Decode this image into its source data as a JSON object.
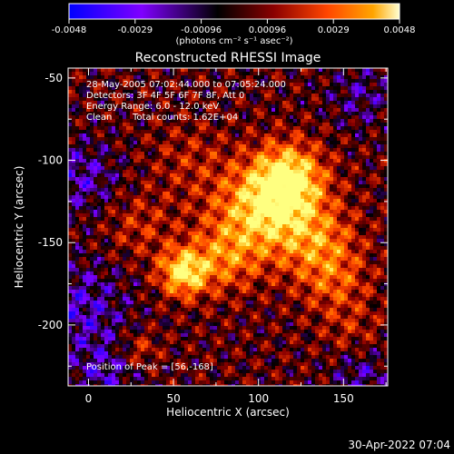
{
  "colorbar": {
    "ticks": [
      "-0.0048",
      "-0.0029",
      "-0.00096",
      "0.00096",
      "0.0029",
      "0.0048"
    ],
    "unit_label": "(photons cm⁻² s⁻¹ asec⁻²)"
  },
  "chart_data": {
    "type": "heatmap",
    "title": "Reconstructed RHESSI Image",
    "xlabel": "Heliocentric X (arcsec)",
    "ylabel": "Heliocentric Y (arcsec)",
    "xlim": [
      -12,
      176
    ],
    "ylim": [
      -237,
      -44
    ],
    "x_ticks": [
      0,
      50,
      100,
      150
    ],
    "y_ticks": [
      -50,
      -100,
      -150,
      -200
    ],
    "value_range": [
      -0.0048,
      0.0048
    ],
    "colormap": [
      "#0000ff",
      "#7f00ff",
      "#000000",
      "#8b0000",
      "#ff4500",
      "#ffa500",
      "#ffff80"
    ],
    "peak": [
      56,
      -168
    ],
    "annotations": {
      "time_range": "28-May-2005 07:02:44.000 to 07:05:24.000",
      "detectors": "Detectors: 3F 4F 5F 6F 7F 8F, Att 0",
      "energy": "Energy Range: 6.0 - 12.0 keV",
      "clean": "Clean",
      "counts": "Total counts: 1.62E+04",
      "peak_label": "Position of Peak = [56,-168]"
    }
  },
  "footer": {
    "timestamp": "30-Apr-2022 07:04"
  }
}
